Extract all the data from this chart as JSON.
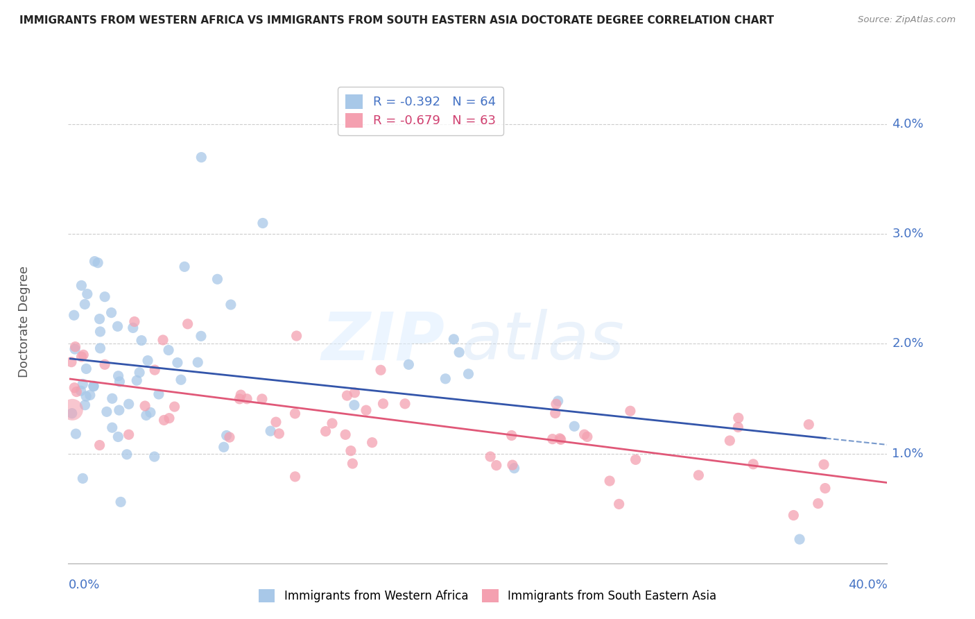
{
  "title": "IMMIGRANTS FROM WESTERN AFRICA VS IMMIGRANTS FROM SOUTH EASTERN ASIA DOCTORATE DEGREE CORRELATION CHART",
  "source": "Source: ZipAtlas.com",
  "ylabel": "Doctorate Degree",
  "ytick_vals": [
    0.0,
    0.01,
    0.02,
    0.03,
    0.04
  ],
  "ytick_labels": [
    "",
    "1.0%",
    "2.0%",
    "3.0%",
    "4.0%"
  ],
  "xlim": [
    0.0,
    0.4
  ],
  "ylim": [
    0.0,
    0.044
  ],
  "color_blue": "#a8c8e8",
  "color_pink": "#f4a0b0",
  "color_blue_text": "#4472c4",
  "color_pink_text": "#d04070",
  "background_color": "#ffffff",
  "grid_color": "#cccccc",
  "watermark_zip": "ZIP",
  "watermark_atlas": "atlas",
  "legend1_label": "R = -0.392   N = 64",
  "legend2_label": "R = -0.679   N = 63",
  "bottom_label1": "Immigrants from Western Africa",
  "bottom_label2": "Immigrants from South Eastern Asia",
  "blue_intercept": 0.0215,
  "blue_slope": -0.038,
  "pink_intercept": 0.0215,
  "pink_slope": -0.038
}
